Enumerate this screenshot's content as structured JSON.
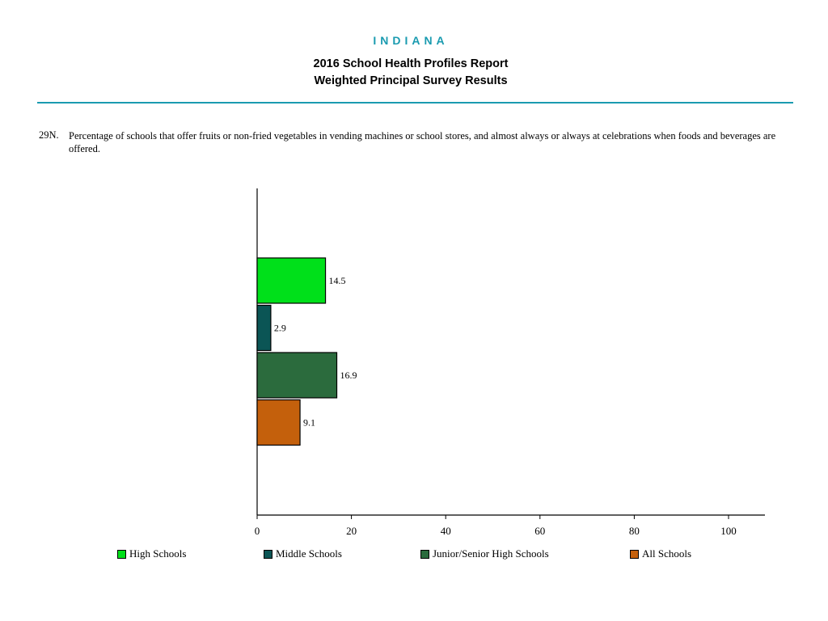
{
  "header": {
    "state": "INDIANA",
    "title_line1": "2016 School Health Profiles Report",
    "title_line2": "Weighted Principal Survey Results",
    "accent_color": "#1a9bb0"
  },
  "question": {
    "number": "29N.",
    "text": "Percentage of schools that offer fruits or non-fried vegetables in vending machines or school stores, and almost always or always at celebrations when foods and beverages are offered."
  },
  "chart_data": {
    "type": "bar",
    "orientation": "horizontal",
    "title": "",
    "xlabel": "",
    "ylabel": "",
    "xlim": [
      0,
      100
    ],
    "x_ticks": [
      "0",
      "20",
      "40",
      "60",
      "80",
      "100"
    ],
    "grid": false,
    "legend_position": "bottom",
    "series": [
      {
        "name": "High Schools",
        "value": 14.5,
        "label": "14.5",
        "color": "#00e01a"
      },
      {
        "name": "Middle Schools",
        "value": 2.9,
        "label": "2.9",
        "color": "#0b5555"
      },
      {
        "name": "Junior/Senior High Schools",
        "value": 16.9,
        "label": "16.9",
        "color": "#2b6b3d"
      },
      {
        "name": "All Schools",
        "value": 9.1,
        "label": "9.1",
        "color": "#c4600c"
      }
    ]
  }
}
